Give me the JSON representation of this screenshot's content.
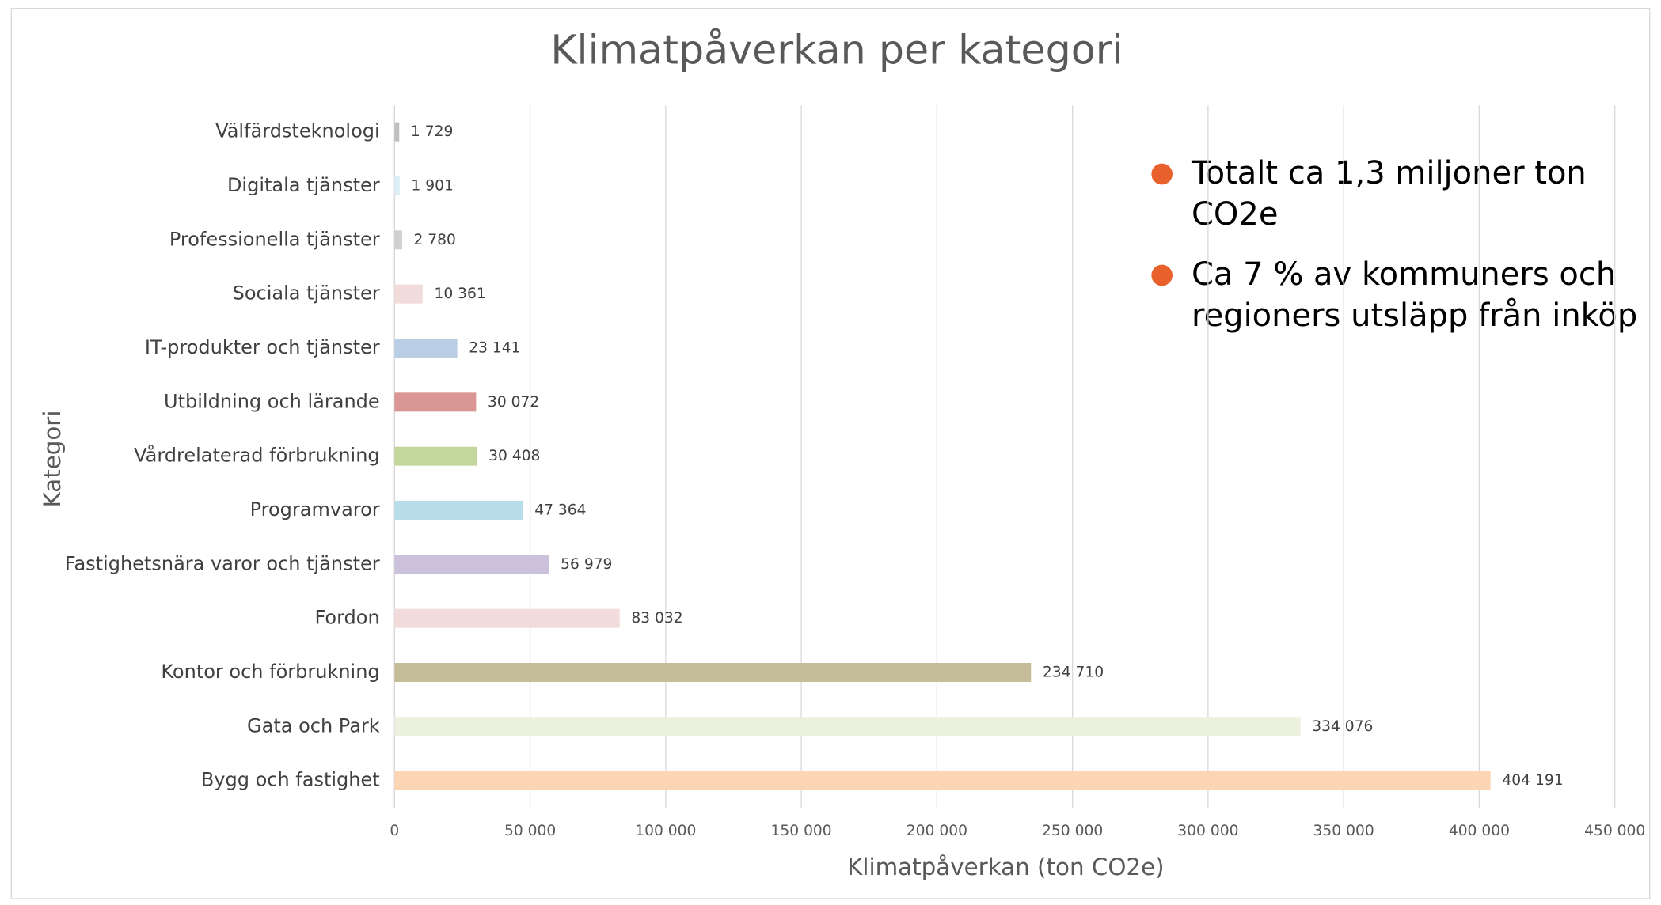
{
  "chart_data": {
    "type": "bar",
    "orientation": "horizontal",
    "title": "Klimatpåverkan per kategori",
    "xlabel": "Klimatpåverkan (ton CO2e)",
    "ylabel": "Kategori",
    "categories": [
      "Välfärdsteknologi",
      "Digitala tjänster",
      "Professionella tjänster",
      "Sociala tjänster",
      "IT-produkter och tjänster",
      "Utbildning och lärande",
      "Vårdrelaterad förbrukning",
      "Programvaror",
      "Fastighetsnära varor och tjänster",
      "Fordon",
      "Kontor och förbrukning",
      "Gata och Park",
      "Bygg och fastighet"
    ],
    "values": [
      1729,
      1901,
      2780,
      10361,
      23141,
      30072,
      30408,
      47364,
      56979,
      83032,
      234710,
      334076,
      404191
    ],
    "value_labels": [
      "1 729",
      "1 901",
      "2 780",
      "10 361",
      "23 141",
      "30 072",
      "30 408",
      "47 364",
      "56 979",
      "83 032",
      "234 710",
      "334 076",
      "404 191"
    ],
    "colors": [
      "#bfbfbf",
      "#ddeef6",
      "#d0d0d0",
      "#f2dcdb",
      "#b9cde5",
      "#d99694",
      "#c3d69b",
      "#b7dee8",
      "#ccc1da",
      "#f2dcdb",
      "#c4bd97",
      "#ebf1de",
      "#fcd5b5"
    ],
    "xlim": [
      0,
      450000
    ],
    "xticks": [
      0,
      {
        "value": 50000,
        "label": "50 000"
      },
      {
        "value": 100000,
        "label": "100 000"
      },
      {
        "value": 150000,
        "label": "150 000"
      },
      {
        "value": 200000,
        "label": "200 000"
      },
      {
        "value": 250000,
        "label": "250 000"
      },
      {
        "value": 300000,
        "label": "300 000"
      },
      {
        "value": 350000,
        "label": "350 000"
      },
      {
        "value": 400000,
        "label": "400 000"
      },
      {
        "value": 450000,
        "label": "450 000"
      }
    ],
    "grid": true,
    "annotations": [
      "Totalt ca 1,3 miljoner ton CO2e",
      "Ca 7 % av kommuners och regioners utsläpp från inköp"
    ]
  }
}
